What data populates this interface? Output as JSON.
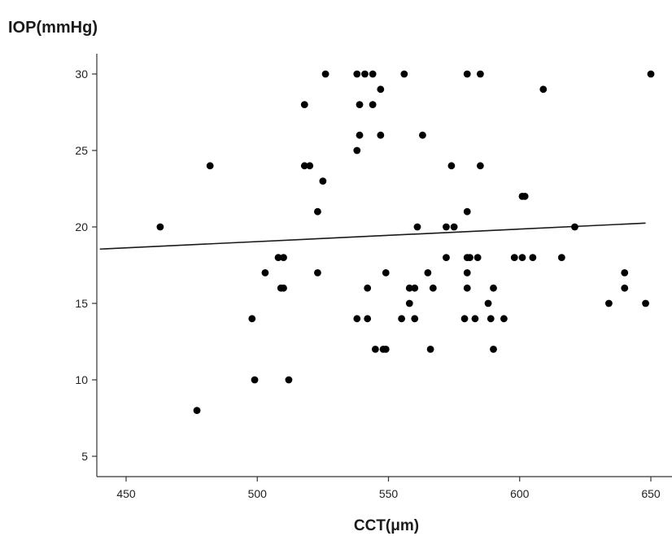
{
  "chart_data": {
    "type": "scatter",
    "title": "",
    "xlabel": "CCT(μm)",
    "ylabel": "IOP(mmHg)",
    "xlim": [
      440,
      648
    ],
    "ylim": [
      3.6,
      31.5
    ],
    "xticks": [
      {
        "value": 450,
        "label": "450"
      },
      {
        "value": 500,
        "label": "500"
      },
      {
        "value": 550,
        "label": "550"
      },
      {
        "value": 600,
        "label": "600"
      },
      {
        "value": 650,
        "label": "650"
      }
    ],
    "yticks": [
      {
        "value": 5,
        "label": "5"
      },
      {
        "value": 10,
        "label": "10"
      },
      {
        "value": 15,
        "label": "15"
      },
      {
        "value": 20,
        "label": "20"
      },
      {
        "value": 25,
        "label": "25"
      },
      {
        "value": 30,
        "label": "30"
      }
    ],
    "grid": false,
    "marker_color": "#000000",
    "line_color": "#1a1a1a",
    "fit_line": {
      "x": [
        440,
        648
      ],
      "y": [
        18.55,
        20.25
      ]
    },
    "points": [
      {
        "x": 463,
        "y": 20
      },
      {
        "x": 477,
        "y": 8
      },
      {
        "x": 482,
        "y": 24
      },
      {
        "x": 498,
        "y": 14
      },
      {
        "x": 499,
        "y": 10
      },
      {
        "x": 503,
        "y": 17
      },
      {
        "x": 508,
        "y": 18
      },
      {
        "x": 510,
        "y": 18
      },
      {
        "x": 509,
        "y": 16
      },
      {
        "x": 510,
        "y": 16
      },
      {
        "x": 512,
        "y": 10
      },
      {
        "x": 518,
        "y": 28
      },
      {
        "x": 518,
        "y": 24
      },
      {
        "x": 520,
        "y": 24
      },
      {
        "x": 523,
        "y": 21
      },
      {
        "x": 523,
        "y": 17
      },
      {
        "x": 525,
        "y": 23
      },
      {
        "x": 526,
        "y": 30
      },
      {
        "x": 538,
        "y": 30
      },
      {
        "x": 541,
        "y": 30
      },
      {
        "x": 544,
        "y": 30
      },
      {
        "x": 539,
        "y": 28
      },
      {
        "x": 544,
        "y": 28
      },
      {
        "x": 539,
        "y": 26
      },
      {
        "x": 538,
        "y": 25
      },
      {
        "x": 547,
        "y": 29
      },
      {
        "x": 547,
        "y": 26
      },
      {
        "x": 556,
        "y": 30
      },
      {
        "x": 538,
        "y": 14
      },
      {
        "x": 542,
        "y": 16
      },
      {
        "x": 542,
        "y": 14
      },
      {
        "x": 545,
        "y": 12
      },
      {
        "x": 548,
        "y": 12
      },
      {
        "x": 549,
        "y": 12
      },
      {
        "x": 549,
        "y": 17
      },
      {
        "x": 555,
        "y": 14
      },
      {
        "x": 558,
        "y": 16
      },
      {
        "x": 558,
        "y": 15
      },
      {
        "x": 560,
        "y": 16
      },
      {
        "x": 560,
        "y": 14
      },
      {
        "x": 561,
        "y": 20
      },
      {
        "x": 563,
        "y": 26
      },
      {
        "x": 565,
        "y": 17
      },
      {
        "x": 566,
        "y": 12
      },
      {
        "x": 567,
        "y": 16
      },
      {
        "x": 572,
        "y": 20
      },
      {
        "x": 572,
        "y": 18
      },
      {
        "x": 574,
        "y": 24
      },
      {
        "x": 575,
        "y": 20
      },
      {
        "x": 579,
        "y": 14
      },
      {
        "x": 580,
        "y": 30
      },
      {
        "x": 580,
        "y": 21
      },
      {
        "x": 580,
        "y": 18
      },
      {
        "x": 581,
        "y": 18
      },
      {
        "x": 580,
        "y": 17
      },
      {
        "x": 580,
        "y": 16
      },
      {
        "x": 583,
        "y": 14
      },
      {
        "x": 584,
        "y": 18
      },
      {
        "x": 585,
        "y": 30
      },
      {
        "x": 585,
        "y": 24
      },
      {
        "x": 588,
        "y": 15
      },
      {
        "x": 589,
        "y": 14
      },
      {
        "x": 590,
        "y": 16
      },
      {
        "x": 590,
        "y": 12
      },
      {
        "x": 594,
        "y": 14
      },
      {
        "x": 598,
        "y": 18
      },
      {
        "x": 601,
        "y": 18
      },
      {
        "x": 601,
        "y": 22
      },
      {
        "x": 602,
        "y": 22
      },
      {
        "x": 605,
        "y": 18
      },
      {
        "x": 609,
        "y": 29
      },
      {
        "x": 616,
        "y": 18
      },
      {
        "x": 621,
        "y": 20
      },
      {
        "x": 634,
        "y": 15
      },
      {
        "x": 640,
        "y": 17
      },
      {
        "x": 640,
        "y": 16
      },
      {
        "x": 648,
        "y": 15
      },
      {
        "x": 650,
        "y": 30
      }
    ]
  }
}
